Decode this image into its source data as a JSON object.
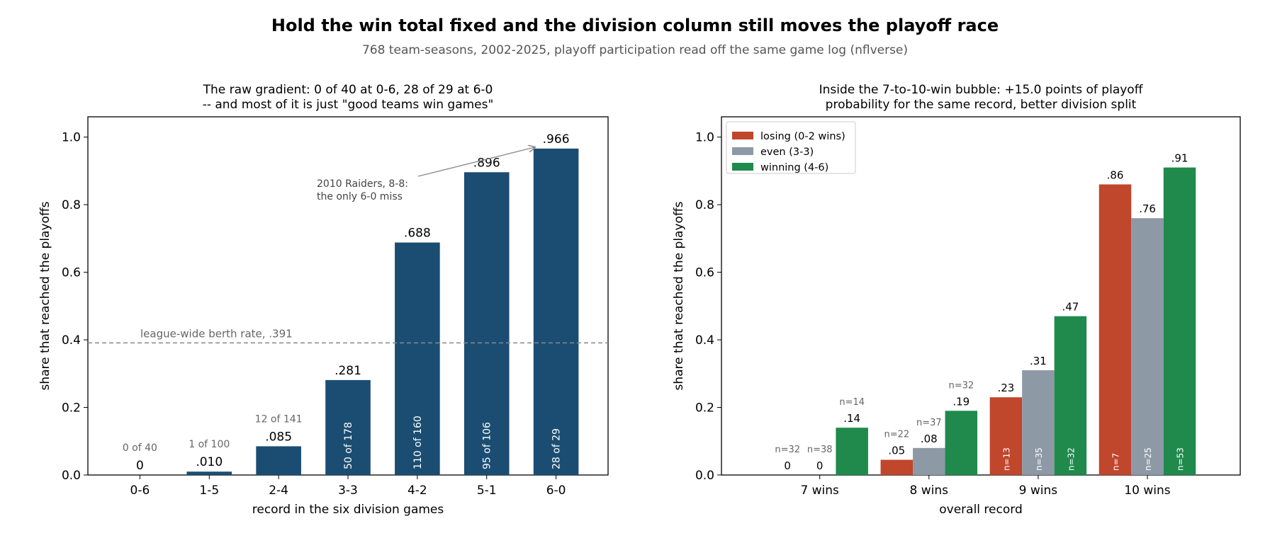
{
  "figure": {
    "title": "Hold the win total fixed and the division column still moves the playoff race",
    "subtitle": "768 team-seasons, 2002-2025, playoff participation read off the same game log (nflverse)"
  },
  "colors": {
    "navy": "#1b4d72",
    "losing": "#c0462c",
    "even": "#8e99a6",
    "winning": "#1f8a4c",
    "muted_text": "#666666",
    "reference_line": "#888888"
  },
  "chart_data": [
    {
      "type": "bar",
      "title_lines": [
        "The raw gradient: 0 of 40 at 0-6, 28 of 29 at 6-0",
        "-- and most of it is just \"good teams win games\""
      ],
      "xlabel": "record in the six division games",
      "ylabel": "share that reached the playoffs",
      "ylim": [
        0,
        1.06
      ],
      "yticks": [
        "0.0",
        "0.2",
        "0.4",
        "0.6",
        "0.8",
        "1.0"
      ],
      "grid": false,
      "categories": [
        "0-6",
        "1-5",
        "2-4",
        "3-3",
        "4-2",
        "5-1",
        "6-0"
      ],
      "values": [
        0.0,
        0.01,
        0.085,
        0.281,
        0.688,
        0.896,
        0.966
      ],
      "value_labels": [
        "0",
        ".010",
        ".085",
        ".281",
        ".688",
        ".896",
        ".966"
      ],
      "count_labels": [
        "0 of 40",
        "1 of 100",
        "12 of 141",
        "50 of 178",
        "110 of 160",
        "95 of 106",
        "28 of 29"
      ],
      "reference_line": {
        "value": 0.391,
        "label": "league-wide berth rate, .391"
      },
      "annotation": {
        "lines": [
          "2010 Raiders, 8-8:",
          "the only 6-0 miss"
        ],
        "target_category": "6-0"
      }
    },
    {
      "type": "bar",
      "title_lines": [
        "Inside the 7-to-10-win bubble: +15.0 points of playoff",
        "probability for the same record, better division split"
      ],
      "xlabel": "overall record",
      "ylabel": "share that reached the playoffs",
      "ylim": [
        0,
        1.06
      ],
      "yticks": [
        "0.0",
        "0.2",
        "0.4",
        "0.6",
        "0.8",
        "1.0"
      ],
      "grid": false,
      "legend_position": "top-left",
      "categories": [
        "7 wins",
        "8 wins",
        "9 wins",
        "10 wins"
      ],
      "series": [
        {
          "name": "losing (0-2 wins)",
          "color_key": "losing",
          "values": [
            0.0,
            0.045,
            0.23,
            0.86
          ],
          "value_labels": [
            "0",
            ".05",
            ".23",
            ".86"
          ],
          "n_labels": [
            "n=32",
            "n=22",
            "n=13",
            "n=7"
          ]
        },
        {
          "name": "even (3-3)",
          "color_key": "even",
          "values": [
            0.0,
            0.08,
            0.31,
            0.76
          ],
          "value_labels": [
            "0",
            ".08",
            ".31",
            ".76"
          ],
          "n_labels": [
            "n=38",
            "n=37",
            "n=35",
            "n=25"
          ]
        },
        {
          "name": "winning (4-6)",
          "color_key": "winning",
          "values": [
            0.14,
            0.19,
            0.47,
            0.91
          ],
          "value_labels": [
            ".14",
            ".19",
            ".47",
            ".91"
          ],
          "n_labels": [
            "n=14",
            "n=32",
            "n=32",
            "n=53"
          ]
        }
      ]
    }
  ]
}
